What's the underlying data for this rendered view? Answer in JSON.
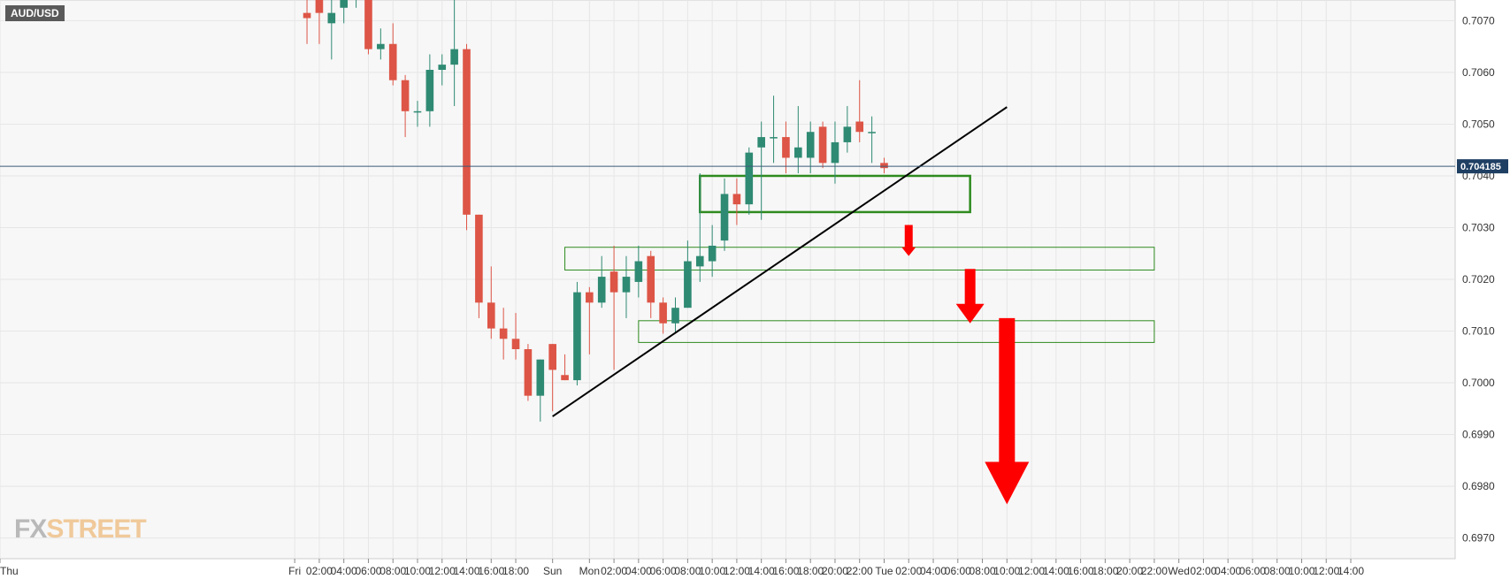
{
  "symbol": "AUD/USD",
  "watermark": {
    "part1": "FX",
    "part2": "STREET"
  },
  "colors": {
    "up": "#2f8a73",
    "down": "#dd5546",
    "grid": "#e6e6e6",
    "background": "#f7f7f7",
    "price_line": "#3a5a7a",
    "zone": "#2e8b1e",
    "arrow": "#ff0000",
    "trendline": "#000000"
  },
  "chart_data": {
    "type": "candlestick",
    "title": "",
    "xlabel": "",
    "ylabel": "",
    "y_range": [
      0.6966,
      0.7074
    ],
    "x_range_hours": [
      -24,
      94.5
    ],
    "x_ticks": [
      {
        "h": -24,
        "label": "Thu"
      },
      {
        "h": 0,
        "label": "Fri"
      },
      {
        "h": 2,
        "label": "02:00"
      },
      {
        "h": 4,
        "label": "04:00"
      },
      {
        "h": 6,
        "label": "06:00"
      },
      {
        "h": 8,
        "label": "08:00"
      },
      {
        "h": 10,
        "label": "10:00"
      },
      {
        "h": 12,
        "label": "12:00"
      },
      {
        "h": 14,
        "label": "14:00"
      },
      {
        "h": 16,
        "label": "16:00"
      },
      {
        "h": 18,
        "label": "18:00"
      },
      {
        "h": 21,
        "label": "Sun"
      },
      {
        "h": 24,
        "label": "Mon"
      },
      {
        "h": 26,
        "label": "02:00"
      },
      {
        "h": 28,
        "label": "04:00"
      },
      {
        "h": 30,
        "label": "06:00"
      },
      {
        "h": 32,
        "label": "08:00"
      },
      {
        "h": 34,
        "label": "10:00"
      },
      {
        "h": 36,
        "label": "12:00"
      },
      {
        "h": 38,
        "label": "14:00"
      },
      {
        "h": 40,
        "label": "16:00"
      },
      {
        "h": 42,
        "label": "18:00"
      },
      {
        "h": 44,
        "label": "20:00"
      },
      {
        "h": 46,
        "label": "22:00"
      },
      {
        "h": 48,
        "label": "Tue"
      },
      {
        "h": 50,
        "label": "02:00"
      },
      {
        "h": 52,
        "label": "04:00"
      },
      {
        "h": 54,
        "label": "06:00"
      },
      {
        "h": 56,
        "label": "08:00"
      },
      {
        "h": 58,
        "label": "10:00"
      },
      {
        "h": 60,
        "label": "12:00"
      },
      {
        "h": 62,
        "label": "14:00"
      },
      {
        "h": 64,
        "label": "16:00"
      },
      {
        "h": 66,
        "label": "18:00"
      },
      {
        "h": 68,
        "label": "20:00"
      },
      {
        "h": 70,
        "label": "22:00"
      },
      {
        "h": 72,
        "label": "Wed"
      },
      {
        "h": 74,
        "label": "02:00"
      },
      {
        "h": 76,
        "label": "04:00"
      },
      {
        "h": 78,
        "label": "06:00"
      },
      {
        "h": 80,
        "label": "08:00"
      },
      {
        "h": 82,
        "label": "10:00"
      },
      {
        "h": 84,
        "label": "12:00"
      },
      {
        "h": 86,
        "label": "14:00"
      }
    ],
    "y_ticks": [
      {
        "v": 0.707,
        "label": "0.7070"
      },
      {
        "v": 0.706,
        "label": "0.7060"
      },
      {
        "v": 0.705,
        "label": "0.7050"
      },
      {
        "v": 0.704,
        "label": "0.7040"
      },
      {
        "v": 0.703,
        "label": "0.7030"
      },
      {
        "v": 0.702,
        "label": "0.7020"
      },
      {
        "v": 0.701,
        "label": "0.7010"
      },
      {
        "v": 0.7,
        "label": "0.7000"
      },
      {
        "v": 0.699,
        "label": "0.6990"
      },
      {
        "v": 0.698,
        "label": "0.6980"
      },
      {
        "v": 0.697,
        "label": "0.6970"
      }
    ],
    "current_price": {
      "value": 0.704185,
      "label": "0.704185"
    },
    "candles": [
      {
        "h": 1,
        "o": 0.70715,
        "hi": 0.70745,
        "l": 0.70655,
        "c": 0.70705
      },
      {
        "h": 2,
        "o": 0.70755,
        "hi": 0.70775,
        "l": 0.70655,
        "c": 0.70715
      },
      {
        "h": 3,
        "o": 0.70695,
        "hi": 0.70745,
        "l": 0.70625,
        "c": 0.70715
      },
      {
        "h": 4,
        "o": 0.70725,
        "hi": 0.70765,
        "l": 0.70695,
        "c": 0.70755
      },
      {
        "h": 5,
        "o": 0.70745,
        "hi": 0.70775,
        "l": 0.70725,
        "c": 0.70765
      },
      {
        "h": 6,
        "o": 0.70785,
        "hi": 0.70805,
        "l": 0.70635,
        "c": 0.70645
      },
      {
        "h": 7,
        "o": 0.70645,
        "hi": 0.70685,
        "l": 0.70625,
        "c": 0.70655
      },
      {
        "h": 8,
        "o": 0.70655,
        "hi": 0.70695,
        "l": 0.70575,
        "c": 0.70585
      },
      {
        "h": 9,
        "o": 0.70585,
        "hi": 0.70595,
        "l": 0.70475,
        "c": 0.70525
      },
      {
        "h": 10,
        "o": 0.70525,
        "hi": 0.70545,
        "l": 0.70495,
        "c": 0.70525
      },
      {
        "h": 11,
        "o": 0.70525,
        "hi": 0.70635,
        "l": 0.70495,
        "c": 0.70605
      },
      {
        "h": 12,
        "o": 0.70605,
        "hi": 0.70635,
        "l": 0.70575,
        "c": 0.70615
      },
      {
        "h": 13,
        "o": 0.70615,
        "hi": 0.70755,
        "l": 0.70535,
        "c": 0.70645
      },
      {
        "h": 14,
        "o": 0.70645,
        "hi": 0.70655,
        "l": 0.70295,
        "c": 0.70325
      },
      {
        "h": 15,
        "o": 0.70325,
        "hi": 0.70325,
        "l": 0.70125,
        "c": 0.70155
      },
      {
        "h": 16,
        "o": 0.70155,
        "hi": 0.70225,
        "l": 0.70085,
        "c": 0.70105
      },
      {
        "h": 17,
        "o": 0.70105,
        "hi": 0.70145,
        "l": 0.70045,
        "c": 0.70085
      },
      {
        "h": 18,
        "o": 0.70085,
        "hi": 0.70135,
        "l": 0.70045,
        "c": 0.70065
      },
      {
        "h": 19,
        "o": 0.70065,
        "hi": 0.70075,
        "l": 0.69965,
        "c": 0.69975
      },
      {
        "h": 20,
        "o": 0.69975,
        "hi": 0.70045,
        "l": 0.69925,
        "c": 0.70045
      },
      {
        "h": 21,
        "o": 0.70075,
        "hi": 0.70075,
        "l": 0.69945,
        "c": 0.70025
      },
      {
        "h": 22,
        "o": 0.70015,
        "hi": 0.70055,
        "l": 0.70005,
        "c": 0.70005
      },
      {
        "h": 23,
        "o": 0.70005,
        "hi": 0.70195,
        "l": 0.69995,
        "c": 0.70175
      },
      {
        "h": 24,
        "o": 0.70175,
        "hi": 0.70185,
        "l": 0.70055,
        "c": 0.70155
      },
      {
        "h": 25,
        "o": 0.70155,
        "hi": 0.70245,
        "l": 0.70145,
        "c": 0.70205
      },
      {
        "h": 26,
        "o": 0.70215,
        "hi": 0.70265,
        "l": 0.70025,
        "c": 0.70175
      },
      {
        "h": 27,
        "o": 0.70175,
        "hi": 0.70245,
        "l": 0.70125,
        "c": 0.70205
      },
      {
        "h": 28,
        "o": 0.70195,
        "hi": 0.70265,
        "l": 0.70165,
        "c": 0.70235
      },
      {
        "h": 29,
        "o": 0.70245,
        "hi": 0.70255,
        "l": 0.70125,
        "c": 0.70155
      },
      {
        "h": 30,
        "o": 0.70155,
        "hi": 0.70165,
        "l": 0.70095,
        "c": 0.70115
      },
      {
        "h": 31,
        "o": 0.70115,
        "hi": 0.70165,
        "l": 0.70095,
        "c": 0.70145
      },
      {
        "h": 32,
        "o": 0.70145,
        "hi": 0.70275,
        "l": 0.70145,
        "c": 0.70235
      },
      {
        "h": 33,
        "o": 0.70225,
        "hi": 0.70405,
        "l": 0.70195,
        "c": 0.70245
      },
      {
        "h": 34,
        "o": 0.70235,
        "hi": 0.70305,
        "l": 0.70205,
        "c": 0.70265
      },
      {
        "h": 35,
        "o": 0.70275,
        "hi": 0.70395,
        "l": 0.70255,
        "c": 0.70365
      },
      {
        "h": 36,
        "o": 0.70365,
        "hi": 0.70395,
        "l": 0.70305,
        "c": 0.70345
      },
      {
        "h": 37,
        "o": 0.70345,
        "hi": 0.70455,
        "l": 0.70325,
        "c": 0.70445
      },
      {
        "h": 38,
        "o": 0.70455,
        "hi": 0.70505,
        "l": 0.70315,
        "c": 0.70475
      },
      {
        "h": 39,
        "o": 0.70475,
        "hi": 0.70555,
        "l": 0.70425,
        "c": 0.70475
      },
      {
        "h": 40,
        "o": 0.70475,
        "hi": 0.70505,
        "l": 0.70405,
        "c": 0.70435
      },
      {
        "h": 41,
        "o": 0.70435,
        "hi": 0.70535,
        "l": 0.70405,
        "c": 0.70455
      },
      {
        "h": 42,
        "o": 0.70435,
        "hi": 0.70505,
        "l": 0.70405,
        "c": 0.70485
      },
      {
        "h": 43,
        "o": 0.70495,
        "hi": 0.70505,
        "l": 0.70415,
        "c": 0.70425
      },
      {
        "h": 44,
        "o": 0.70425,
        "hi": 0.70505,
        "l": 0.70385,
        "c": 0.70465
      },
      {
        "h": 45,
        "o": 0.70465,
        "hi": 0.70535,
        "l": 0.70445,
        "c": 0.70495
      },
      {
        "h": 46,
        "o": 0.70505,
        "hi": 0.70585,
        "l": 0.70465,
        "c": 0.70485
      },
      {
        "h": 47,
        "o": 0.70485,
        "hi": 0.70515,
        "l": 0.70425,
        "c": 0.70485
      },
      {
        "h": 48,
        "o": 0.70425,
        "hi": 0.70435,
        "l": 0.70405,
        "c": 0.70415
      }
    ],
    "zones": [
      {
        "h1": 33,
        "h2": 55,
        "top": 0.704,
        "bottom": 0.7033,
        "style": "thick"
      },
      {
        "h1": 22,
        "h2": 70,
        "top": 0.70262,
        "bottom": 0.70218,
        "style": "thin"
      },
      {
        "h1": 28,
        "h2": 70,
        "top": 0.7012,
        "bottom": 0.70078,
        "style": "thin"
      }
    ],
    "trendline": {
      "h1": 21,
      "v1": 0.69935,
      "h2": 58,
      "v2": 0.70533
    },
    "arrows": [
      {
        "h": 50,
        "from": 0.70305,
        "to": 0.70245,
        "size": "small"
      },
      {
        "h": 55,
        "from": 0.7022,
        "to": 0.70115,
        "size": "medium"
      },
      {
        "h": 58,
        "from": 0.70125,
        "to": 0.69765,
        "size": "large"
      }
    ]
  }
}
